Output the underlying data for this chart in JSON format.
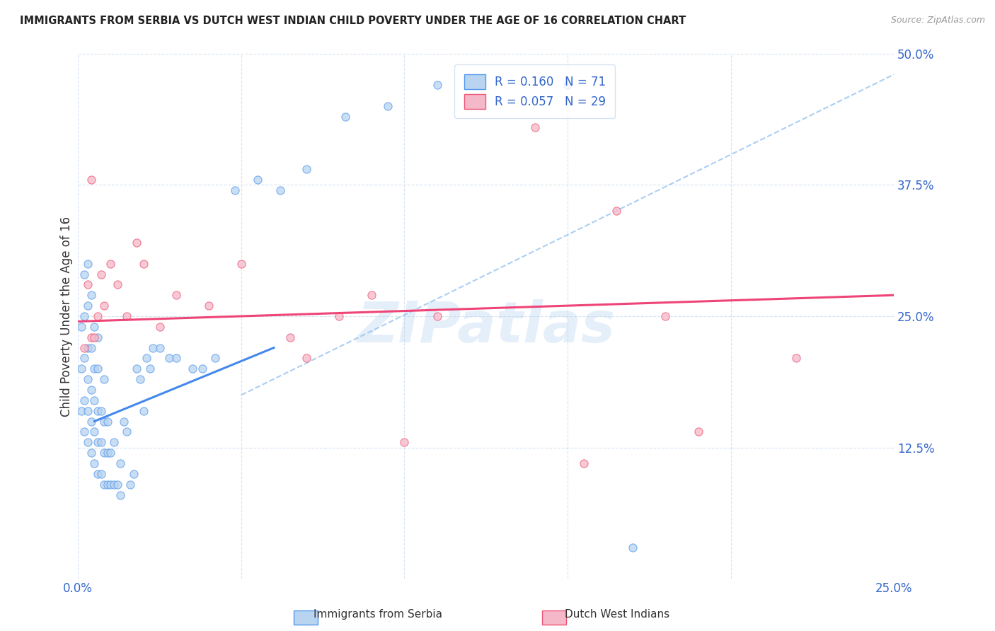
{
  "title": "IMMIGRANTS FROM SERBIA VS DUTCH WEST INDIAN CHILD POVERTY UNDER THE AGE OF 16 CORRELATION CHART",
  "source": "Source: ZipAtlas.com",
  "ylabel": "Child Poverty Under the Age of 16",
  "xlim": [
    0.0,
    0.25
  ],
  "ylim": [
    0.0,
    0.5
  ],
  "xticks": [
    0.0,
    0.05,
    0.1,
    0.15,
    0.2,
    0.25
  ],
  "yticks": [
    0.0,
    0.125,
    0.25,
    0.375,
    0.5
  ],
  "xticklabels": [
    "0.0%",
    "",
    "",
    "",
    "",
    "25.0%"
  ],
  "yticklabels": [
    "",
    "12.5%",
    "25.0%",
    "37.5%",
    "50.0%"
  ],
  "serbia_R": 0.16,
  "serbia_N": 71,
  "dwi_R": 0.057,
  "dwi_N": 29,
  "serbia_color": "#b8d4f0",
  "serbia_edge_color": "#5599ee",
  "dwi_color": "#f5b8c8",
  "dwi_edge_color": "#ee5577",
  "serbia_line_color": "#4488ee",
  "dwi_line_color": "#ee4477",
  "dash_color": "#88bbee",
  "watermark": "ZIPatlas",
  "serbia_scatter_x": [
    0.001,
    0.001,
    0.001,
    0.002,
    0.002,
    0.002,
    0.002,
    0.002,
    0.003,
    0.003,
    0.003,
    0.003,
    0.003,
    0.003,
    0.004,
    0.004,
    0.004,
    0.004,
    0.004,
    0.005,
    0.005,
    0.005,
    0.005,
    0.005,
    0.006,
    0.006,
    0.006,
    0.006,
    0.006,
    0.007,
    0.007,
    0.007,
    0.008,
    0.008,
    0.008,
    0.008,
    0.009,
    0.009,
    0.009,
    0.01,
    0.01,
    0.011,
    0.011,
    0.012,
    0.013,
    0.013,
    0.014,
    0.015,
    0.016,
    0.017,
    0.018,
    0.019,
    0.02,
    0.021,
    0.022,
    0.023,
    0.025,
    0.028,
    0.03,
    0.035,
    0.038,
    0.042,
    0.048,
    0.055,
    0.062,
    0.07,
    0.082,
    0.095,
    0.11,
    0.15,
    0.17
  ],
  "serbia_scatter_y": [
    0.16,
    0.2,
    0.24,
    0.14,
    0.17,
    0.21,
    0.25,
    0.29,
    0.13,
    0.16,
    0.19,
    0.22,
    0.26,
    0.3,
    0.12,
    0.15,
    0.18,
    0.22,
    0.27,
    0.11,
    0.14,
    0.17,
    0.2,
    0.24,
    0.1,
    0.13,
    0.16,
    0.2,
    0.23,
    0.1,
    0.13,
    0.16,
    0.09,
    0.12,
    0.15,
    0.19,
    0.09,
    0.12,
    0.15,
    0.09,
    0.12,
    0.09,
    0.13,
    0.09,
    0.08,
    0.11,
    0.15,
    0.14,
    0.09,
    0.1,
    0.2,
    0.19,
    0.16,
    0.21,
    0.2,
    0.22,
    0.22,
    0.21,
    0.21,
    0.2,
    0.2,
    0.21,
    0.37,
    0.38,
    0.37,
    0.39,
    0.44,
    0.45,
    0.47,
    0.47,
    0.03
  ],
  "dwi_scatter_x": [
    0.002,
    0.003,
    0.004,
    0.004,
    0.005,
    0.006,
    0.007,
    0.008,
    0.01,
    0.012,
    0.015,
    0.018,
    0.02,
    0.025,
    0.03,
    0.04,
    0.05,
    0.065,
    0.07,
    0.08,
    0.09,
    0.1,
    0.11,
    0.14,
    0.155,
    0.165,
    0.18,
    0.19,
    0.22
  ],
  "dwi_scatter_y": [
    0.22,
    0.28,
    0.23,
    0.38,
    0.23,
    0.25,
    0.29,
    0.26,
    0.3,
    0.28,
    0.25,
    0.32,
    0.3,
    0.24,
    0.27,
    0.26,
    0.3,
    0.23,
    0.21,
    0.25,
    0.27,
    0.13,
    0.25,
    0.43,
    0.11,
    0.35,
    0.25,
    0.14,
    0.21
  ],
  "serbia_line_x": [
    0.005,
    0.06
  ],
  "serbia_line_y": [
    0.15,
    0.22
  ],
  "dwi_line_x": [
    0.0,
    0.25
  ],
  "dwi_line_y": [
    0.245,
    0.27
  ],
  "dash_line_x": [
    0.05,
    0.25
  ],
  "dash_line_y": [
    0.175,
    0.48
  ]
}
